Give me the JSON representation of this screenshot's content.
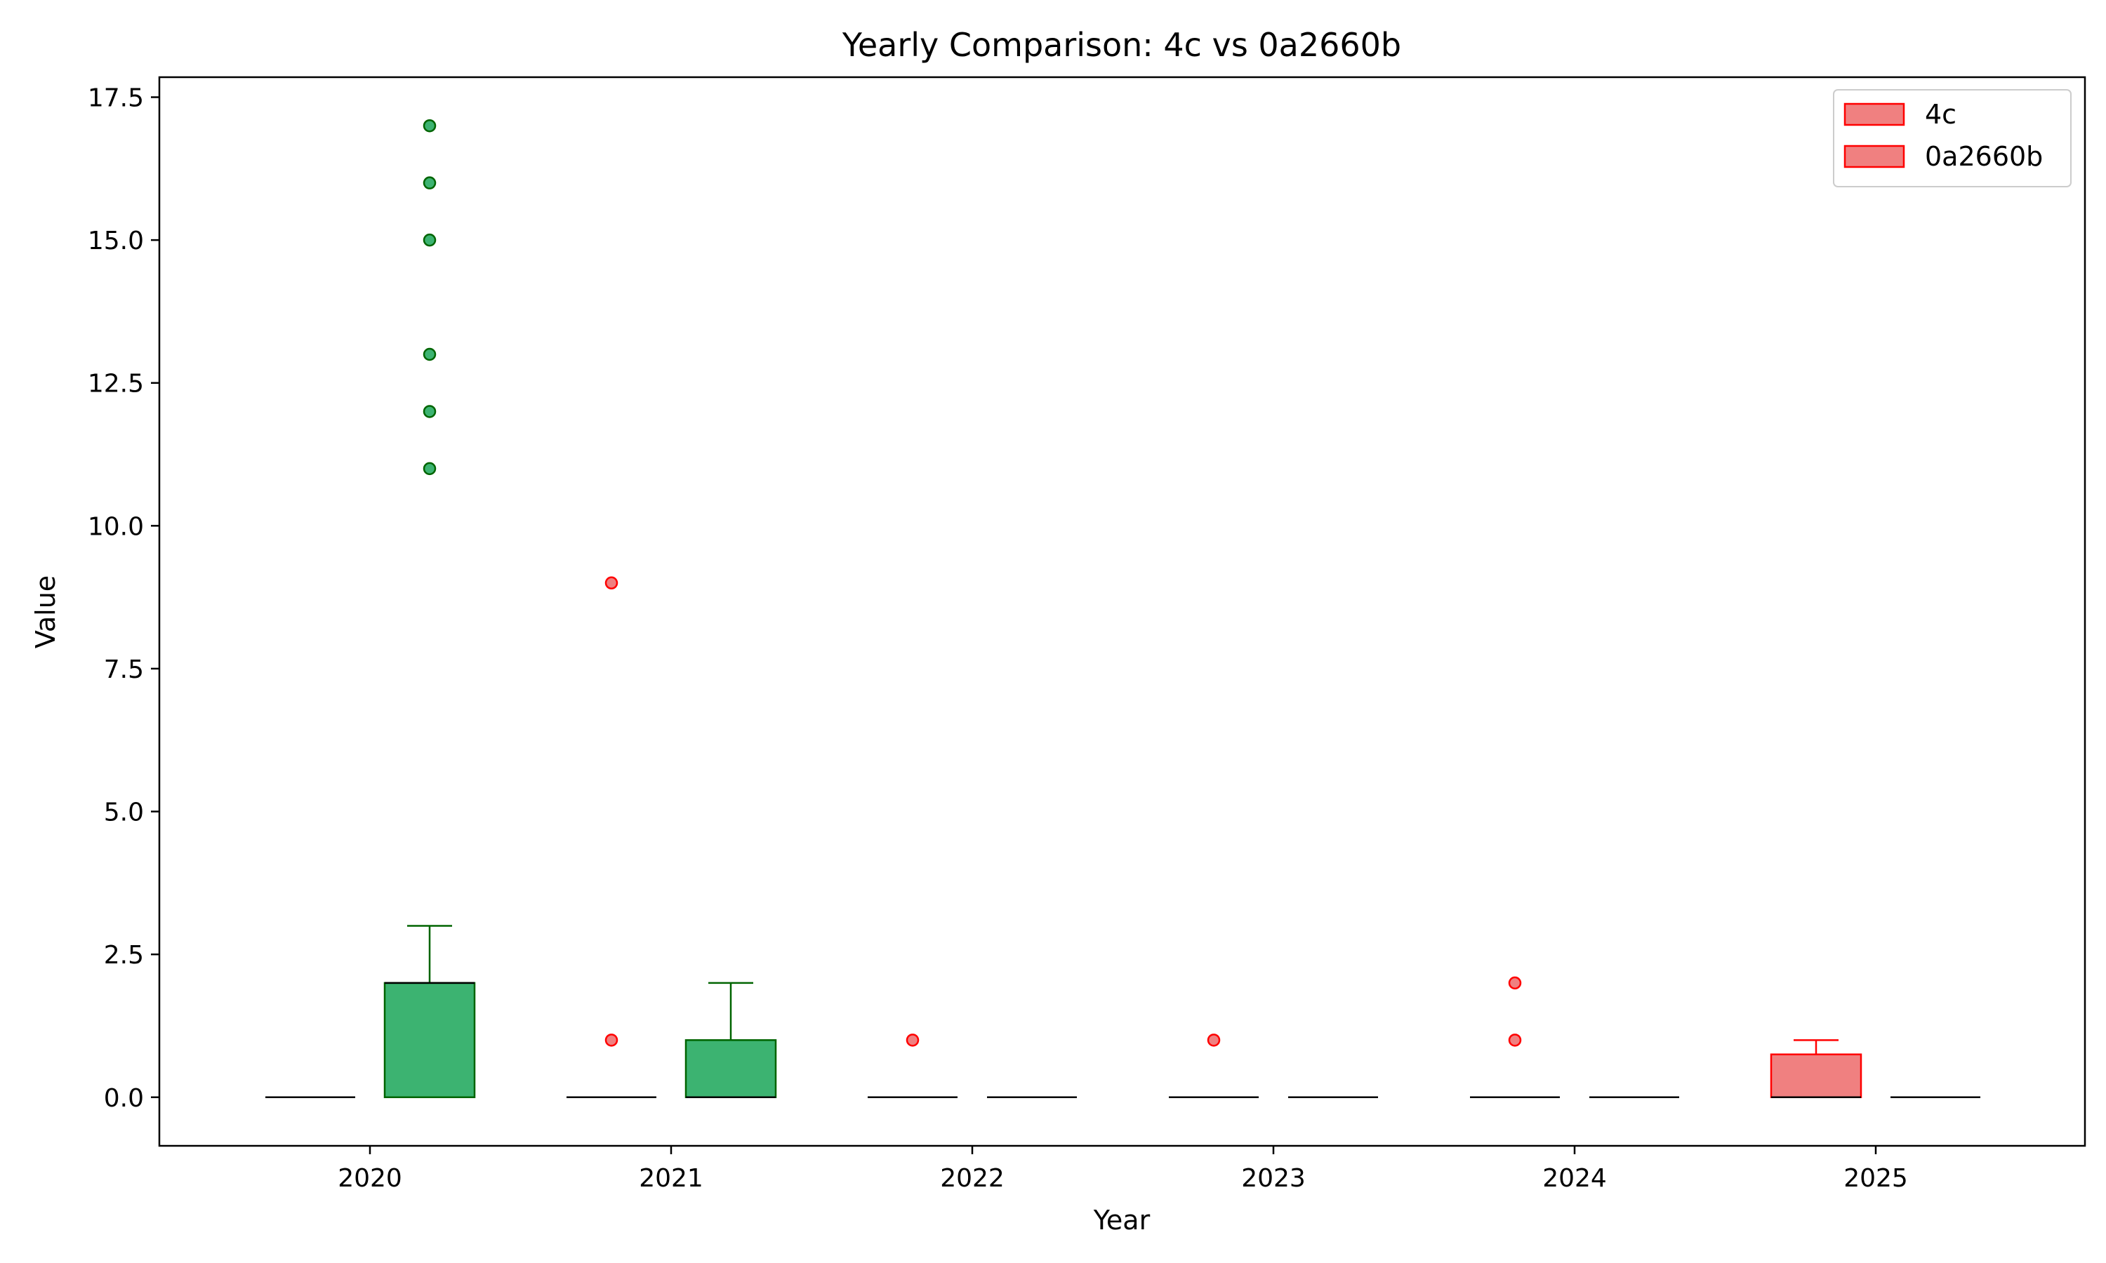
{
  "chart_data": {
    "type": "box",
    "title": "Yearly Comparison: 4c vs 0a2660b",
    "xlabel": "Year",
    "ylabel": "Value",
    "categories": [
      "2020",
      "2021",
      "2022",
      "2023",
      "2024",
      "2025"
    ],
    "ylim": [
      -0.85,
      17.85
    ],
    "yticks": [
      0.0,
      2.5,
      5.0,
      7.5,
      10.0,
      12.5,
      15.0,
      17.5
    ],
    "ytick_labels": [
      "0.0",
      "2.5",
      "5.0",
      "7.5",
      "10.0",
      "12.5",
      "15.0",
      "17.5"
    ],
    "legend_position": "top-right",
    "series": [
      {
        "name": "4c",
        "legend_color": "#f08080",
        "legend_edge": "#ff0000",
        "boxes": [
          {
            "category": "2020",
            "whisker_low": 0,
            "q1": 0,
            "median": 0,
            "q3": 0,
            "whisker_high": 0,
            "fill": "#f08080",
            "edge": "#ff0000",
            "outliers": []
          },
          {
            "category": "2021",
            "whisker_low": 0,
            "q1": 0,
            "median": 0,
            "q3": 0,
            "whisker_high": 0,
            "fill": "#f08080",
            "edge": "#ff0000",
            "outliers": [
              1,
              9
            ]
          },
          {
            "category": "2022",
            "whisker_low": 0,
            "q1": 0,
            "median": 0,
            "q3": 0,
            "whisker_high": 0,
            "fill": "#f08080",
            "edge": "#ff0000",
            "outliers": [
              1
            ]
          },
          {
            "category": "2023",
            "whisker_low": 0,
            "q1": 0,
            "median": 0,
            "q3": 0,
            "whisker_high": 0,
            "fill": "#f08080",
            "edge": "#ff0000",
            "outliers": [
              1
            ]
          },
          {
            "category": "2024",
            "whisker_low": 0,
            "q1": 0,
            "median": 0,
            "q3": 0,
            "whisker_high": 0,
            "fill": "#f08080",
            "edge": "#ff0000",
            "outliers": [
              1,
              2
            ]
          },
          {
            "category": "2025",
            "whisker_low": 0,
            "q1": 0,
            "median": 0,
            "q3": 0.75,
            "whisker_high": 1,
            "fill": "#f08080",
            "edge": "#ff0000",
            "outliers": []
          }
        ]
      },
      {
        "name": "0a2660b",
        "legend_color": "#f08080",
        "legend_edge": "#ff0000",
        "boxes": [
          {
            "category": "2020",
            "whisker_low": 0,
            "q1": 0,
            "median": 2,
            "q3": 2,
            "whisker_high": 3,
            "fill": "#3cb371",
            "edge": "#006400",
            "outliers": [
              11,
              12,
              13,
              15,
              16,
              17
            ]
          },
          {
            "category": "2021",
            "whisker_low": 0,
            "q1": 0,
            "median": 0,
            "q3": 1,
            "whisker_high": 2,
            "fill": "#3cb371",
            "edge": "#006400",
            "outliers": []
          },
          {
            "category": "2022",
            "whisker_low": 0,
            "q1": 0,
            "median": 0,
            "q3": 0,
            "whisker_high": 0,
            "fill": "#3cb371",
            "edge": "#006400",
            "outliers": []
          },
          {
            "category": "2023",
            "whisker_low": 0,
            "q1": 0,
            "median": 0,
            "q3": 0,
            "whisker_high": 0,
            "fill": "#3cb371",
            "edge": "#006400",
            "outliers": []
          },
          {
            "category": "2024",
            "whisker_low": 0,
            "q1": 0,
            "median": 0,
            "q3": 0,
            "whisker_high": 0,
            "fill": "#3cb371",
            "edge": "#006400",
            "outliers": []
          },
          {
            "category": "2025",
            "whisker_low": 0,
            "q1": 0,
            "median": 0,
            "q3": 0,
            "whisker_high": 0,
            "fill": "#f08080",
            "edge": "#ff0000",
            "outliers": []
          }
        ]
      }
    ]
  }
}
